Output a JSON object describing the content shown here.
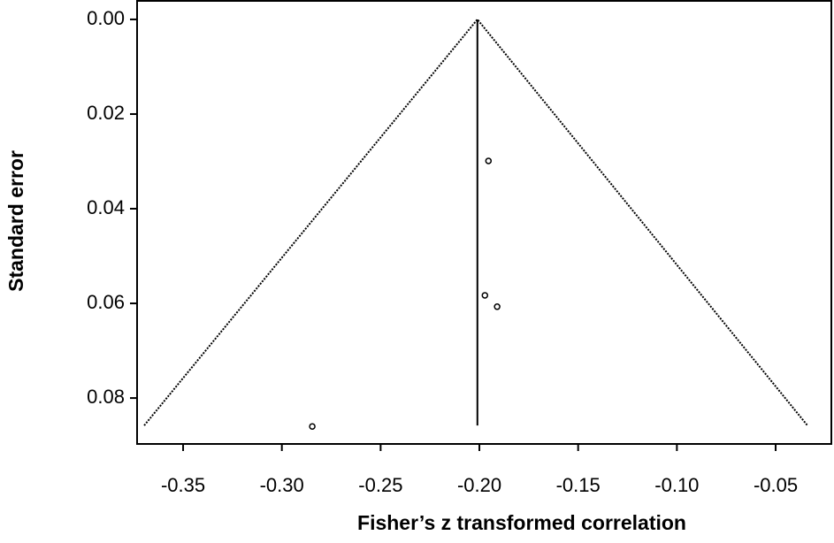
{
  "chart_data": {
    "type": "funnel",
    "xlabel": "Fisher’s z transformed correlation",
    "ylabel": "Standard error",
    "x": [
      -0.1954,
      -0.1972,
      -0.191,
      -0.2846
    ],
    "y": [
      0.0299,
      0.0583,
      0.0607,
      0.086
    ],
    "funnel": {
      "x": [
        -0.3697,
        -0.201,
        -0.0339
      ],
      "y": [
        0.0858,
        0,
        0.0858
      ]
    },
    "center_line": {
      "x": [
        -0.201,
        -0.201
      ],
      "y": [
        0,
        0.0858
      ]
    },
    "xlim": [
      -0.3733,
      -0.0218
    ],
    "ylim": [
      0.0897,
      -0.0041
    ],
    "xticks": [
      -0.35,
      {
        "value": -0.3,
        "label": "-0.30"
      },
      -0.25,
      {
        "value": -0.2,
        "label": "-0.20"
      },
      -0.15,
      {
        "value": -0.1,
        "label": "-0.10"
      },
      -0.05
    ],
    "yticks": [
      {
        "value": 0,
        "label": "0.00"
      },
      {
        "value": 0.02,
        "label": "0.02"
      },
      {
        "value": 0.04,
        "label": "0.04"
      },
      {
        "value": 0.06,
        "label": "0.06"
      },
      {
        "value": 0.08,
        "label": "0.08"
      }
    ],
    "color": "#000000"
  }
}
